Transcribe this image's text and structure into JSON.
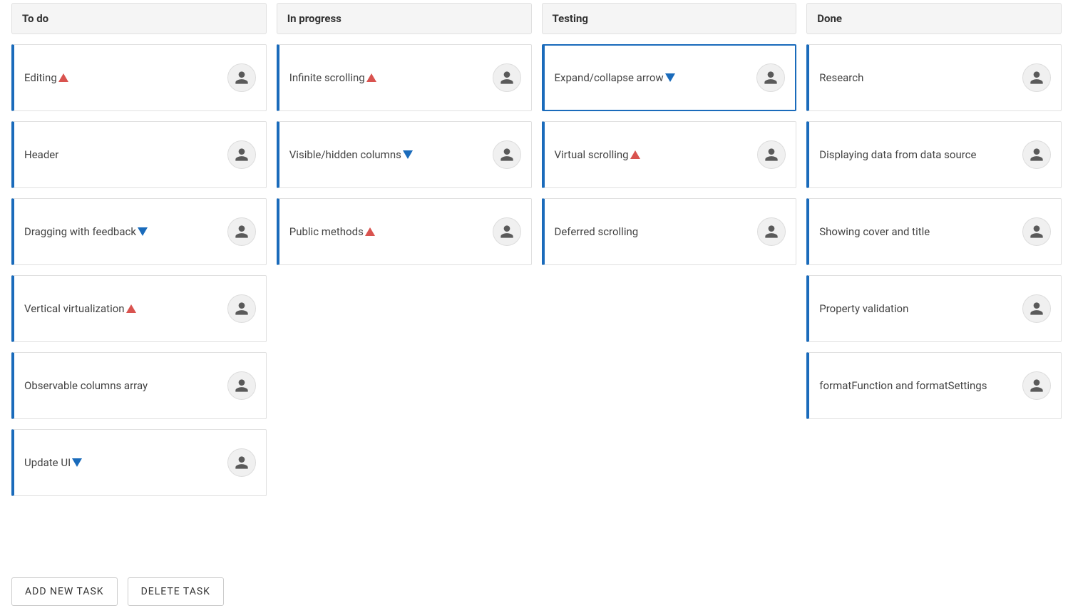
{
  "colors": {
    "card_border_left": "#1a6bbb",
    "card_border": "#e0e0e0",
    "selected_border": "#1a6bbb",
    "header_bg": "#f5f5f5",
    "priority_high": "#d9534f",
    "priority_low": "#1a6bbb",
    "avatar_bg": "#f0f0f0",
    "text": "#444444"
  },
  "columns": [
    {
      "id": "todo",
      "title": "To do",
      "cards": [
        {
          "title": "Editing",
          "priority": "high",
          "selected": false
        },
        {
          "title": "Header",
          "priority": null,
          "selected": false
        },
        {
          "title": "Dragging with feedback",
          "priority": "low",
          "selected": false
        },
        {
          "title": "Vertical virtualization",
          "priority": "high",
          "selected": false
        },
        {
          "title": "Observable columns array",
          "priority": null,
          "selected": false
        },
        {
          "title": "Update UI",
          "priority": "low",
          "selected": false
        }
      ]
    },
    {
      "id": "in-progress",
      "title": "In progress",
      "cards": [
        {
          "title": "Infinite scrolling",
          "priority": "high",
          "selected": false
        },
        {
          "title": "Visible/hidden columns",
          "priority": "low",
          "selected": false
        },
        {
          "title": "Public methods",
          "priority": "high",
          "selected": false
        }
      ]
    },
    {
      "id": "testing",
      "title": "Testing",
      "cards": [
        {
          "title": "Expand/collapse arrow",
          "priority": "low",
          "selected": true
        },
        {
          "title": "Virtual scrolling",
          "priority": "high",
          "selected": false
        },
        {
          "title": "Deferred scrolling",
          "priority": null,
          "selected": false
        }
      ]
    },
    {
      "id": "done",
      "title": "Done",
      "cards": [
        {
          "title": "Research",
          "priority": null,
          "selected": false
        },
        {
          "title": "Displaying data from data source",
          "priority": null,
          "selected": false
        },
        {
          "title": "Showing cover and title",
          "priority": null,
          "selected": false
        },
        {
          "title": "Property validation",
          "priority": null,
          "selected": false
        },
        {
          "title": "formatFunction and formatSettings",
          "priority": null,
          "selected": false
        }
      ]
    }
  ],
  "buttons": {
    "add": "ADD NEW TASK",
    "delete": "DELETE TASK"
  }
}
